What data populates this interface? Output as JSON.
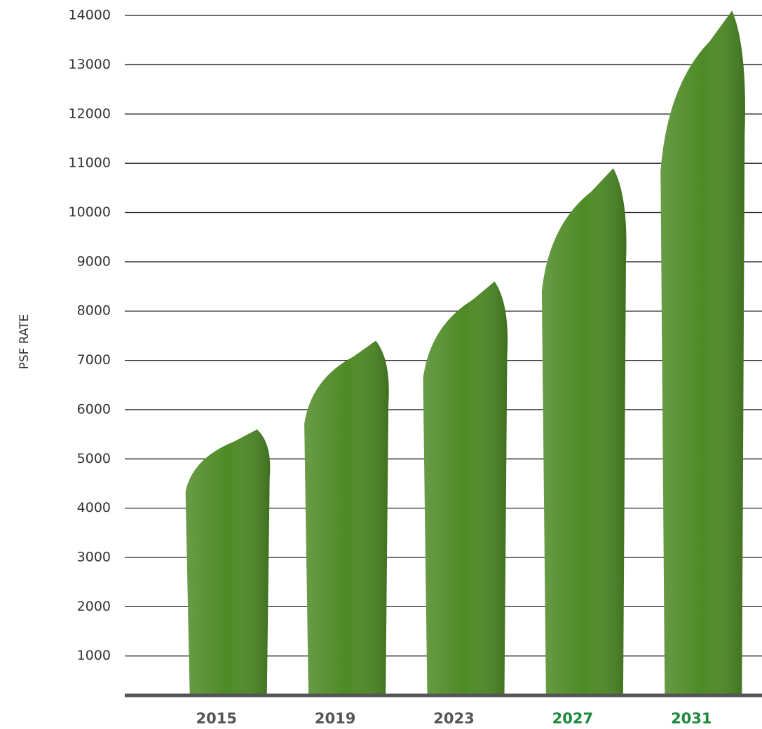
{
  "chart_data": {
    "type": "bar",
    "y_label": "PSF RATE",
    "categories": [
      "2015",
      "2019",
      "2023",
      "2027",
      "2031"
    ],
    "values": [
      5600,
      7400,
      8600,
      10900,
      14100
    ],
    "color": "#4e8a26",
    "category_colors": [
      "#555555",
      "#555555",
      "#555555",
      "#1a8a3a",
      "#1a8a3a"
    ],
    "ylim": [
      200,
      14300
    ],
    "yticks": [
      1000,
      2000,
      3000,
      4000,
      5000,
      6000,
      7000,
      8000,
      9000,
      10000,
      11000,
      12000,
      13000,
      14000
    ],
    "grid": true
  }
}
